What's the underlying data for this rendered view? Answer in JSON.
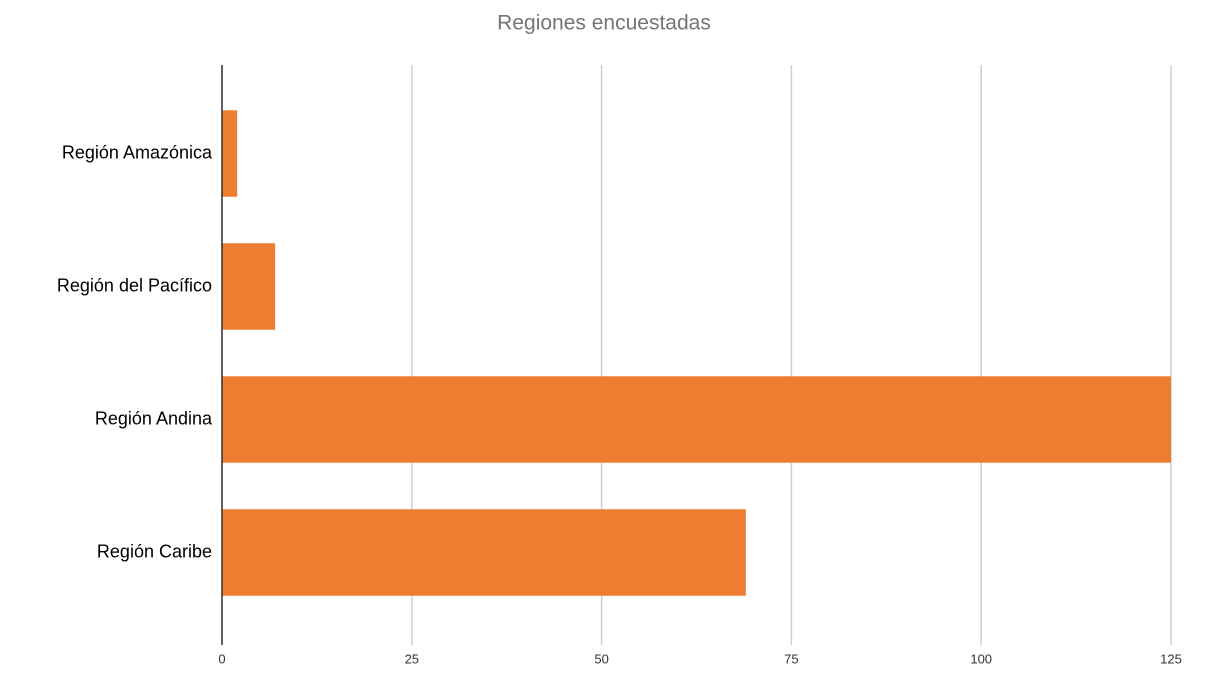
{
  "chart_data": {
    "type": "bar",
    "orientation": "horizontal",
    "title": "Regiones encuestadas",
    "categories": [
      "Región Amazónica",
      "Región del Pacífico",
      "Región Andina",
      "Región Caribe"
    ],
    "values": [
      2,
      7,
      125,
      69
    ],
    "color": "#ed7d31",
    "xlim": [
      0,
      125
    ],
    "xticks": [
      0,
      25,
      50,
      75,
      100,
      125
    ],
    "grid": true
  }
}
